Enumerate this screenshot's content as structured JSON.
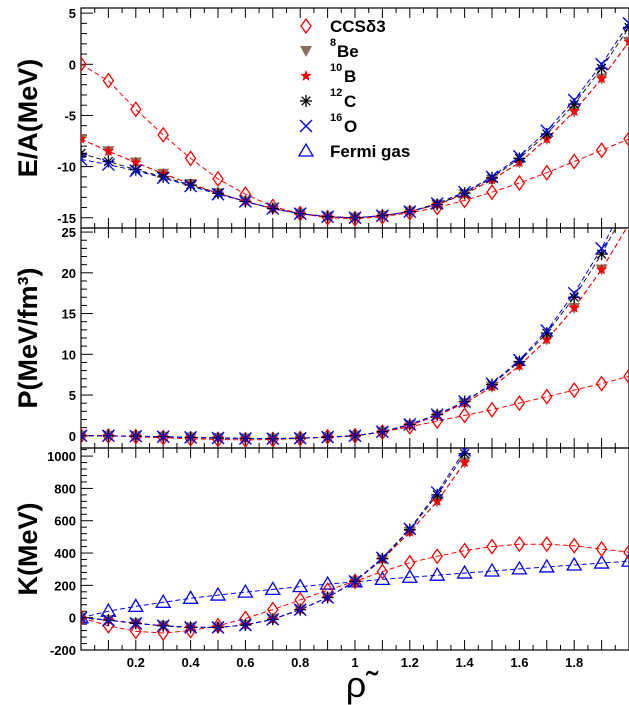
{
  "chart_data": [
    {
      "type": "line",
      "ylabel": "E/A(MeV)",
      "xlim": [
        0.0,
        2.0
      ],
      "ylim": [
        -16.0,
        5.5
      ],
      "yticks": [
        -15,
        -10,
        -5,
        0,
        5
      ],
      "series": [
        {
          "key": "ccs",
          "x": [
            0.0,
            0.1,
            0.2,
            0.3,
            0.4,
            0.5,
            0.6,
            0.7,
            0.8,
            0.9,
            1.0,
            1.1,
            1.2,
            1.3,
            1.4,
            1.5,
            1.6,
            1.7,
            1.8,
            1.9,
            2.0
          ],
          "y": [
            0.0,
            -1.6,
            -4.4,
            -6.9,
            -9.2,
            -11.2,
            -12.7,
            -13.9,
            -14.6,
            -15.0,
            -15.1,
            -14.9,
            -14.5,
            -14.0,
            -13.3,
            -12.5,
            -11.6,
            -10.6,
            -9.5,
            -8.4,
            -7.3
          ]
        },
        {
          "key": "be8",
          "x": [
            0.0,
            0.1,
            0.2,
            0.3,
            0.4,
            0.5,
            0.6,
            0.7,
            0.8,
            0.9,
            1.0,
            1.1,
            1.2,
            1.3,
            1.4,
            1.5,
            1.6,
            1.7,
            1.8,
            1.9,
            2.0
          ],
          "y": [
            -7.3,
            -8.5,
            -9.6,
            -10.7,
            -11.7,
            -12.6,
            -13.4,
            -14.1,
            -14.6,
            -14.9,
            -15.0,
            -14.8,
            -14.4,
            -13.7,
            -12.7,
            -11.3,
            -9.6,
            -7.3,
            -4.6,
            -1.4,
            2.2
          ]
        },
        {
          "key": "b10",
          "x": [
            0.0,
            0.1,
            0.2,
            0.3,
            0.4,
            0.5,
            0.6,
            0.7,
            0.8,
            0.9,
            1.0,
            1.1,
            1.2,
            1.3,
            1.4,
            1.5,
            1.6,
            1.7,
            1.8,
            1.9,
            2.0
          ],
          "y": [
            -7.3,
            -8.5,
            -9.6,
            -10.7,
            -11.7,
            -12.6,
            -13.4,
            -14.1,
            -14.6,
            -14.9,
            -15.0,
            -14.8,
            -14.4,
            -13.7,
            -12.7,
            -11.3,
            -9.6,
            -7.3,
            -4.6,
            -1.4,
            2.2
          ]
        },
        {
          "key": "c12",
          "x": [
            0.0,
            0.1,
            0.2,
            0.3,
            0.4,
            0.5,
            0.6,
            0.7,
            0.8,
            0.9,
            1.0,
            1.1,
            1.2,
            1.3,
            1.4,
            1.5,
            1.6,
            1.7,
            1.8,
            1.9,
            2.0
          ],
          "y": [
            -8.7,
            -9.5,
            -10.3,
            -11.0,
            -11.8,
            -12.6,
            -13.4,
            -14.1,
            -14.6,
            -14.9,
            -15.0,
            -14.8,
            -14.4,
            -13.7,
            -12.6,
            -11.1,
            -9.2,
            -6.8,
            -3.9,
            -0.4,
            3.6
          ]
        },
        {
          "key": "o16",
          "x": [
            0.0,
            0.1,
            0.2,
            0.3,
            0.4,
            0.5,
            0.6,
            0.7,
            0.8,
            0.9,
            1.0,
            1.1,
            1.2,
            1.3,
            1.4,
            1.5,
            1.6,
            1.7,
            1.8,
            1.9,
            2.0
          ],
          "y": [
            -9.3,
            -9.8,
            -10.4,
            -11.1,
            -11.9,
            -12.7,
            -13.4,
            -14.1,
            -14.6,
            -14.9,
            -15.0,
            -14.8,
            -14.4,
            -13.6,
            -12.5,
            -11.0,
            -9.0,
            -6.5,
            -3.5,
            0.0,
            4.0
          ]
        }
      ]
    },
    {
      "type": "line",
      "ylabel": "P(MeV/fm³)",
      "xlim": [
        0.0,
        2.0
      ],
      "ylim": [
        -1.5,
        25.5
      ],
      "yticks": [
        0,
        5,
        10,
        15,
        20,
        25
      ],
      "series": [
        {
          "key": "ccs",
          "x": [
            0.0,
            0.1,
            0.2,
            0.3,
            0.4,
            0.5,
            0.6,
            0.7,
            0.8,
            0.9,
            1.0,
            1.1,
            1.2,
            1.3,
            1.4,
            1.5,
            1.6,
            1.7,
            1.8,
            1.9,
            2.0
          ],
          "y": [
            0.0,
            -0.02,
            -0.11,
            -0.23,
            -0.36,
            -0.46,
            -0.5,
            -0.46,
            -0.33,
            -0.12,
            0.0,
            0.45,
            1.1,
            1.8,
            2.5,
            3.2,
            4.0,
            4.8,
            5.6,
            6.4,
            7.3
          ]
        },
        {
          "key": "be8",
          "x": [
            0.0,
            0.1,
            0.2,
            0.3,
            0.4,
            0.5,
            0.6,
            0.7,
            0.8,
            0.9,
            1.0,
            1.1,
            1.2,
            1.3,
            1.4,
            1.5,
            1.6,
            1.7,
            1.8,
            1.9,
            2.0
          ],
          "y": [
            0.0,
            0.0,
            -0.05,
            -0.12,
            -0.2,
            -0.27,
            -0.33,
            -0.35,
            -0.3,
            -0.17,
            0.0,
            0.48,
            1.3,
            2.5,
            4.0,
            6.0,
            8.6,
            11.8,
            15.7,
            20.4,
            26.0
          ]
        },
        {
          "key": "b10",
          "x": [
            0.0,
            0.1,
            0.2,
            0.3,
            0.4,
            0.5,
            0.6,
            0.7,
            0.8,
            0.9,
            1.0,
            1.1,
            1.2,
            1.3,
            1.4,
            1.5,
            1.6,
            1.7,
            1.8,
            1.9,
            2.0
          ],
          "y": [
            0.0,
            0.0,
            -0.05,
            -0.12,
            -0.2,
            -0.27,
            -0.33,
            -0.35,
            -0.3,
            -0.17,
            0.0,
            0.48,
            1.3,
            2.5,
            4.0,
            6.0,
            8.6,
            11.8,
            15.7,
            20.4,
            26.0
          ]
        },
        {
          "key": "c12",
          "x": [
            0.0,
            0.1,
            0.2,
            0.3,
            0.4,
            0.5,
            0.6,
            0.7,
            0.8,
            0.9,
            1.0,
            1.1,
            1.2,
            1.3,
            1.4,
            1.5,
            1.6,
            1.7,
            1.8,
            1.9,
            2.0
          ],
          "y": [
            0.0,
            0.0,
            -0.05,
            -0.12,
            -0.2,
            -0.27,
            -0.33,
            -0.35,
            -0.3,
            -0.17,
            0.0,
            0.5,
            1.4,
            2.6,
            4.2,
            6.3,
            9.1,
            12.6,
            17.0,
            22.3,
            28.5
          ]
        },
        {
          "key": "o16",
          "x": [
            0.0,
            0.1,
            0.2,
            0.3,
            0.4,
            0.5,
            0.6,
            0.7,
            0.8,
            0.9,
            1.0,
            1.1,
            1.2,
            1.3,
            1.4,
            1.5,
            1.6,
            1.7,
            1.8,
            1.9,
            2.0
          ],
          "y": [
            0.0,
            0.0,
            -0.05,
            -0.12,
            -0.2,
            -0.27,
            -0.33,
            -0.35,
            -0.3,
            -0.17,
            0.0,
            0.5,
            1.4,
            2.6,
            4.2,
            6.4,
            9.3,
            12.9,
            17.5,
            23.0,
            29.5
          ]
        }
      ]
    },
    {
      "type": "line",
      "ylabel": "K(MeV)",
      "xlabel": "ρ̃",
      "xlim": [
        0.0,
        2.0
      ],
      "ylim": [
        -200,
        1050
      ],
      "yticks": [
        -200,
        0,
        200,
        400,
        600,
        800,
        1000
      ],
      "xticks": [
        0.2,
        0.4,
        0.6,
        0.8,
        1,
        1.2,
        1.4,
        1.6,
        1.8
      ],
      "series": [
        {
          "key": "ccs",
          "x": [
            0.0,
            0.1,
            0.2,
            0.3,
            0.4,
            0.5,
            0.6,
            0.7,
            0.8,
            0.9,
            1.0,
            1.1,
            1.2,
            1.3,
            1.4,
            1.5,
            1.6,
            1.7,
            1.8,
            1.9,
            2.0
          ],
          "y": [
            0,
            -50,
            -85,
            -95,
            -80,
            -50,
            -5,
            50,
            110,
            170,
            225,
            285,
            340,
            380,
            415,
            440,
            455,
            455,
            445,
            425,
            405
          ]
        },
        {
          "key": "be8",
          "x": [
            0.0,
            0.1,
            0.2,
            0.3,
            0.4,
            0.5,
            0.6,
            0.7,
            0.8,
            0.9,
            1.0,
            1.1,
            1.2,
            1.3,
            1.4
          ],
          "y": [
            0,
            -15,
            -35,
            -50,
            -60,
            -60,
            -45,
            -10,
            50,
            125,
            225,
            360,
            530,
            720,
            960
          ]
        },
        {
          "key": "b10",
          "x": [
            0.0,
            0.1,
            0.2,
            0.3,
            0.4,
            0.5,
            0.6,
            0.7,
            0.8,
            0.9,
            1.0,
            1.1,
            1.2,
            1.3,
            1.4
          ],
          "y": [
            0,
            -15,
            -35,
            -50,
            -60,
            -60,
            -45,
            -10,
            50,
            125,
            225,
            360,
            530,
            720,
            960
          ]
        },
        {
          "key": "c12",
          "x": [
            0.0,
            0.1,
            0.2,
            0.3,
            0.4,
            0.5,
            0.6,
            0.7,
            0.8,
            0.9,
            1.0,
            1.1,
            1.2,
            1.3,
            1.4
          ],
          "y": [
            0,
            -15,
            -35,
            -50,
            -60,
            -60,
            -45,
            -10,
            50,
            125,
            225,
            365,
            545,
            760,
            1015
          ]
        },
        {
          "key": "o16",
          "x": [
            0.0,
            0.1,
            0.2,
            0.3,
            0.4,
            0.5,
            0.6,
            0.7,
            0.8,
            0.9,
            1.0,
            1.1,
            1.2,
            1.3,
            1.4
          ],
          "y": [
            0,
            -15,
            -35,
            -50,
            -60,
            -60,
            -45,
            -10,
            50,
            125,
            225,
            370,
            550,
            775,
            1035
          ]
        },
        {
          "key": "fermi",
          "x": [
            0.0,
            0.1,
            0.2,
            0.3,
            0.4,
            0.5,
            0.6,
            0.7,
            0.8,
            0.9,
            1.0,
            1.1,
            1.2,
            1.3,
            1.4,
            1.5,
            1.6,
            1.7,
            1.8,
            1.9,
            2.0
          ],
          "y": [
            0,
            40,
            70,
            95,
            120,
            140,
            158,
            175,
            192,
            208,
            222,
            237,
            250,
            263,
            276,
            289,
            302,
            314,
            326,
            338,
            350
          ]
        }
      ]
    }
  ],
  "legend": [
    {
      "key": "ccs",
      "label": "CCSδ3",
      "sup": "",
      "marker": "diamond-open",
      "color": "#ff0000",
      "line": "#ff0000"
    },
    {
      "key": "be8",
      "label": "Be",
      "sup": "8",
      "marker": "triangle-down-filled",
      "color": "#8b6f5e",
      "line": "#8b0000"
    },
    {
      "key": "b10",
      "label": "B",
      "sup": "10",
      "marker": "star-filled",
      "color": "#ff0000",
      "line": "#ff0000"
    },
    {
      "key": "c12",
      "label": "C",
      "sup": "12",
      "marker": "asterisk",
      "color": "#000000",
      "line": "#1a1a1a"
    },
    {
      "key": "o16",
      "label": "O",
      "sup": "16",
      "marker": "cross",
      "color": "#0000ff",
      "line": "#0000ff"
    },
    {
      "key": "fermi",
      "label": "Fermi gas",
      "sup": "",
      "marker": "triangle-up-open",
      "color": "#0000ff",
      "line": "#0000ff"
    }
  ]
}
